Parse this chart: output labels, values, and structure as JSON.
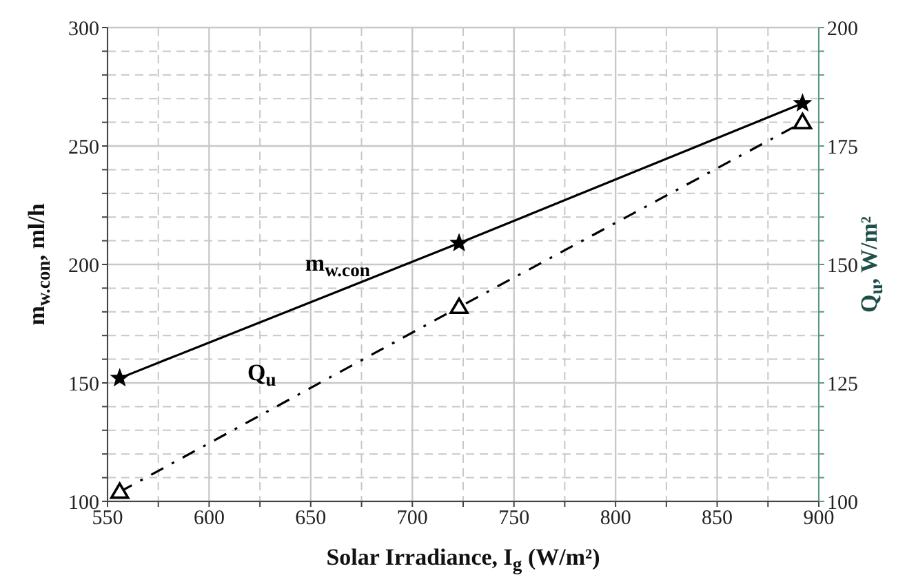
{
  "chart_data": {
    "type": "line",
    "xlabel": "Solar Irradiance, I$_{g}$ (W/m²)",
    "ylabel": "m$_{w.con}$, ml/h",
    "y2label": "Q$_{u}$, W/m²",
    "x": [
      556,
      723,
      892
    ],
    "series": [
      {
        "name": "m$_{w.con}$",
        "color": "#000000",
        "values": [
          152,
          209,
          268
        ],
        "marker": "star",
        "line_style": "solid"
      },
      {
        "name": "Q$_{u}$",
        "color": "#000000",
        "values": [
          102,
          141,
          180
        ],
        "marker": "triangle",
        "line_style": "dashed",
        "axis": "y2"
      }
    ],
    "xlim": [
      550,
      900
    ],
    "xticks": [
      550,
      {
        "value": 575,
        "label": null
      },
      600,
      {
        "value": 625,
        "label": null
      },
      650,
      {
        "value": 675,
        "label": null
      },
      700,
      {
        "value": 725,
        "label": null
      },
      750,
      {
        "value": 775,
        "label": null
      },
      800,
      {
        "value": 825,
        "label": null
      },
      850,
      {
        "value": 875,
        "label": null
      },
      900
    ],
    "ylim": [
      100,
      300
    ],
    "yticks": [
      100,
      {
        "value": 110,
        "label": null
      },
      {
        "value": 120,
        "label": null
      },
      {
        "value": 130,
        "label": null
      },
      {
        "value": 140,
        "label": null
      },
      150,
      {
        "value": 160,
        "label": null
      },
      {
        "value": 170,
        "label": null
      },
      {
        "value": 180,
        "label": null
      },
      {
        "value": 190,
        "label": null
      },
      200,
      {
        "value": 210,
        "label": null
      },
      {
        "value": 220,
        "label": null
      },
      {
        "value": 230,
        "label": null
      },
      {
        "value": 240,
        "label": null
      },
      250,
      {
        "value": 260,
        "label": null
      },
      {
        "value": 270,
        "label": null
      },
      {
        "value": 280,
        "label": null
      },
      {
        "value": 290,
        "label": null
      },
      300
    ],
    "y2lim": [
      100,
      200
    ],
    "y2ticks": [
      100,
      {
        "value": 105,
        "label": null
      },
      {
        "value": 110,
        "label": null
      },
      {
        "value": 115,
        "label": null
      },
      {
        "value": 120,
        "label": null
      },
      125,
      {
        "value": 130,
        "label": null
      },
      {
        "value": 135,
        "label": null
      },
      {
        "value": 140,
        "label": null
      },
      {
        "value": 145,
        "label": null
      },
      150,
      {
        "value": 155,
        "label": null
      },
      {
        "value": 160,
        "label": null
      },
      {
        "value": 165,
        "label": null
      },
      {
        "value": 170,
        "label": null
      },
      175,
      {
        "value": 180,
        "label": null
      },
      {
        "value": 185,
        "label": null
      },
      {
        "value": 190,
        "label": null
      },
      {
        "value": 195,
        "label": null
      },
      200
    ],
    "grid": true
  }
}
